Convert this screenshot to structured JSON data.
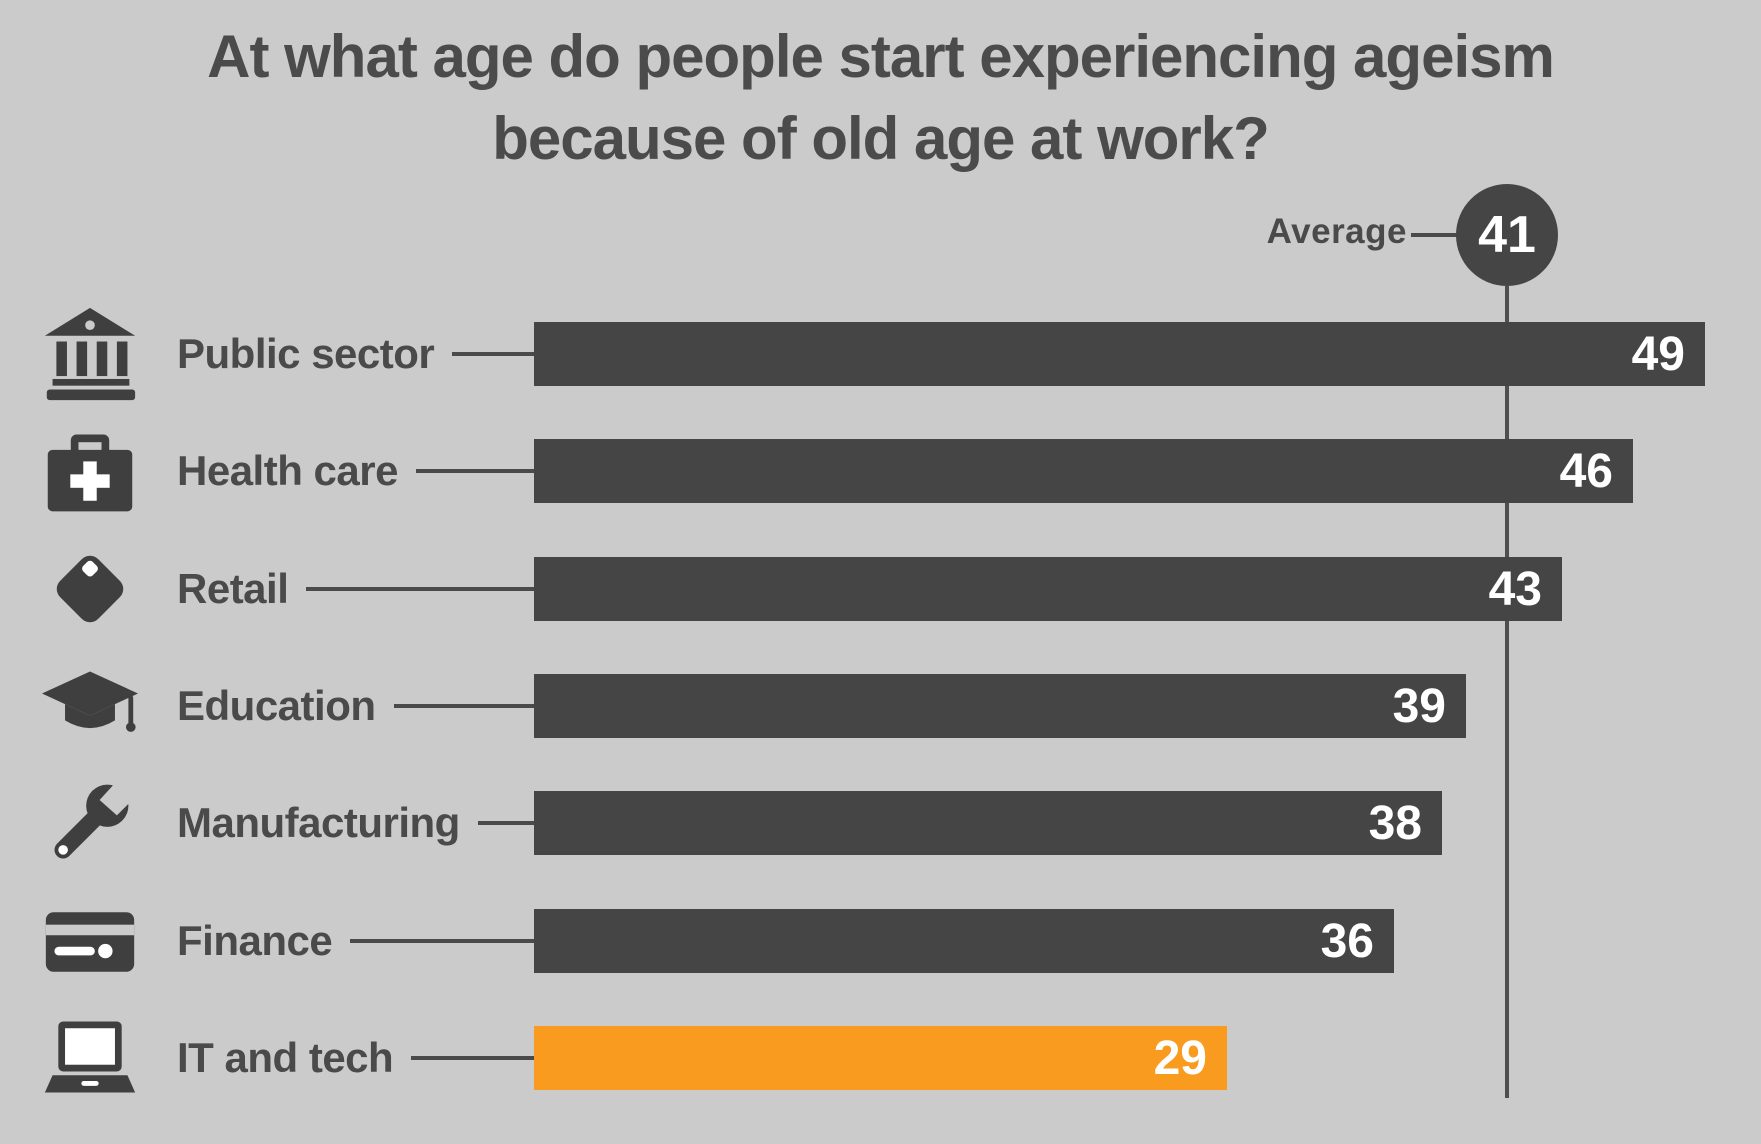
{
  "title": "At what age do people start experiencing ageism because of old age at work?",
  "average": {
    "label": "Average",
    "value": "41"
  },
  "chart_data": {
    "type": "bar",
    "orientation": "horizontal",
    "title": "At what age do people start experiencing ageism because of old age at work?",
    "categories": [
      "Public sector",
      "Health care",
      "Retail",
      "Education",
      "Manufacturing",
      "Finance",
      "IT and tech"
    ],
    "values": [
      49,
      46,
      43,
      39,
      38,
      36,
      29
    ],
    "icons": [
      "bank-icon",
      "first-aid-kit-icon",
      "price-tag-icon",
      "graduation-cap-icon",
      "wrench-icon",
      "credit-card-icon",
      "laptop-icon"
    ],
    "bar_colors": [
      "#454545",
      "#454545",
      "#454545",
      "#454545",
      "#454545",
      "#454545",
      "#F89B1E"
    ],
    "average_marker": {
      "label": "Average",
      "value": 41
    },
    "xlim": [
      0,
      49
    ],
    "value_labels_inside_bars": true,
    "legend": "none",
    "grid": "off"
  },
  "colors": {
    "background": "#cbcbcb",
    "bar_default": "#454545",
    "bar_highlight": "#F89B1E",
    "text_dark": "#4a4a4a",
    "value_text": "#ffffff",
    "average_line": "#4f4f4f"
  }
}
